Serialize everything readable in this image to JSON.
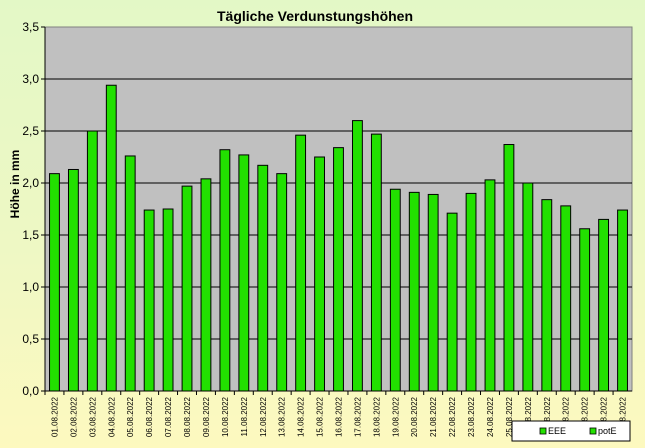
{
  "chart_data": {
    "type": "bar",
    "title": "Tägliche Verdunstungshöhen",
    "xlabel": "",
    "ylabel": "Höhe in mm",
    "ylim": [
      0,
      3.5
    ],
    "yticks": [
      "0,0",
      "0,5",
      "1,0",
      "1,5",
      "2,0",
      "2,5",
      "3,0",
      "3,5"
    ],
    "grid": true,
    "legend_position": "bottom-right",
    "categories": [
      "01.08.2022",
      "02.08.2022",
      "03.08.2022",
      "04.08.2022",
      "05.08.2022",
      "06.08.2022",
      "07.08.2022",
      "08.08.2022",
      "09.08.2022",
      "10.08.2022",
      "11.08.2022",
      "12.08.2022",
      "13.08.2022",
      "14.08.2022",
      "15.08.2022",
      "16.08.2022",
      "17.08.2022",
      "18.08.2022",
      "19.08.2022",
      "20.08.2022",
      "21.08.2022",
      "22.08.2022",
      "23.08.2022",
      "24.08.2022",
      "25.08.2022",
      "26.08.2022",
      "27.08.2022",
      "28.08.2022",
      "29.08.2022",
      "30.08.2022",
      "31.08.2022"
    ],
    "series": [
      {
        "name": "potE",
        "color": "#22e000",
        "values": [
          2.09,
          2.13,
          2.5,
          2.94,
          2.26,
          1.74,
          1.75,
          1.97,
          2.04,
          2.32,
          2.27,
          2.17,
          2.09,
          2.46,
          2.25,
          2.34,
          2.6,
          2.47,
          1.94,
          1.91,
          1.89,
          1.71,
          1.9,
          2.03,
          2.37,
          2.0,
          1.84,
          1.78,
          1.56,
          1.65,
          1.74
        ]
      }
    ],
    "legend": [
      {
        "name": "EEE",
        "color": "#22e000"
      },
      {
        "name": "potE",
        "color": "#22e000"
      }
    ]
  },
  "colors": {
    "plot_background": "#c0c0c0",
    "grid": "#000000",
    "bar": "#22e000",
    "bar_outline": "#000000"
  }
}
